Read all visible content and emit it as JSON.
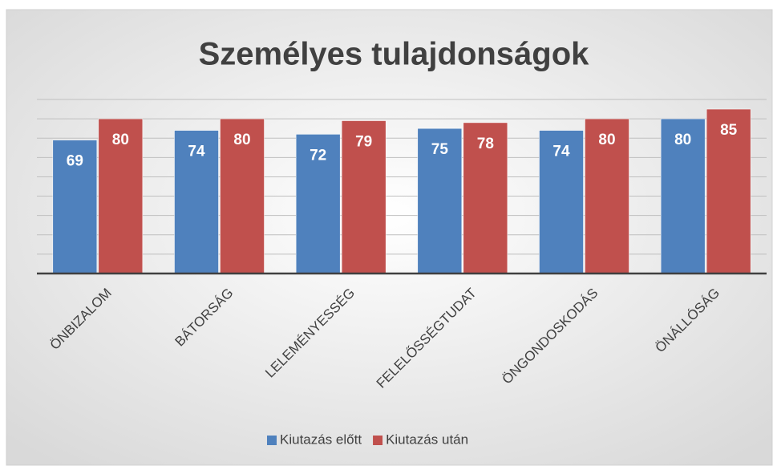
{
  "chart_data": {
    "type": "bar",
    "title": "Személyes tulajdonságok",
    "categories": [
      "ÖNBIZALOM",
      "BÁTORSÁG",
      "LELEMÉNYESSÉG",
      "FELELŐSSÉGTUDAT",
      "ÖNGONDOSKODÁS",
      "ÖNÁLLÓSÁG"
    ],
    "series": [
      {
        "name": "Kiutazás előtt",
        "color": "#4f81bd",
        "values": [
          69,
          74,
          72,
          75,
          74,
          80
        ]
      },
      {
        "name": "Kiutazás után",
        "color": "#c0504d",
        "values": [
          80,
          80,
          79,
          78,
          80,
          85
        ]
      }
    ],
    "ylim": [
      0,
      90
    ],
    "yticks": [
      0,
      10,
      20,
      30,
      40,
      50,
      60,
      70,
      80,
      90
    ],
    "grid": true,
    "legend": "bottom"
  }
}
